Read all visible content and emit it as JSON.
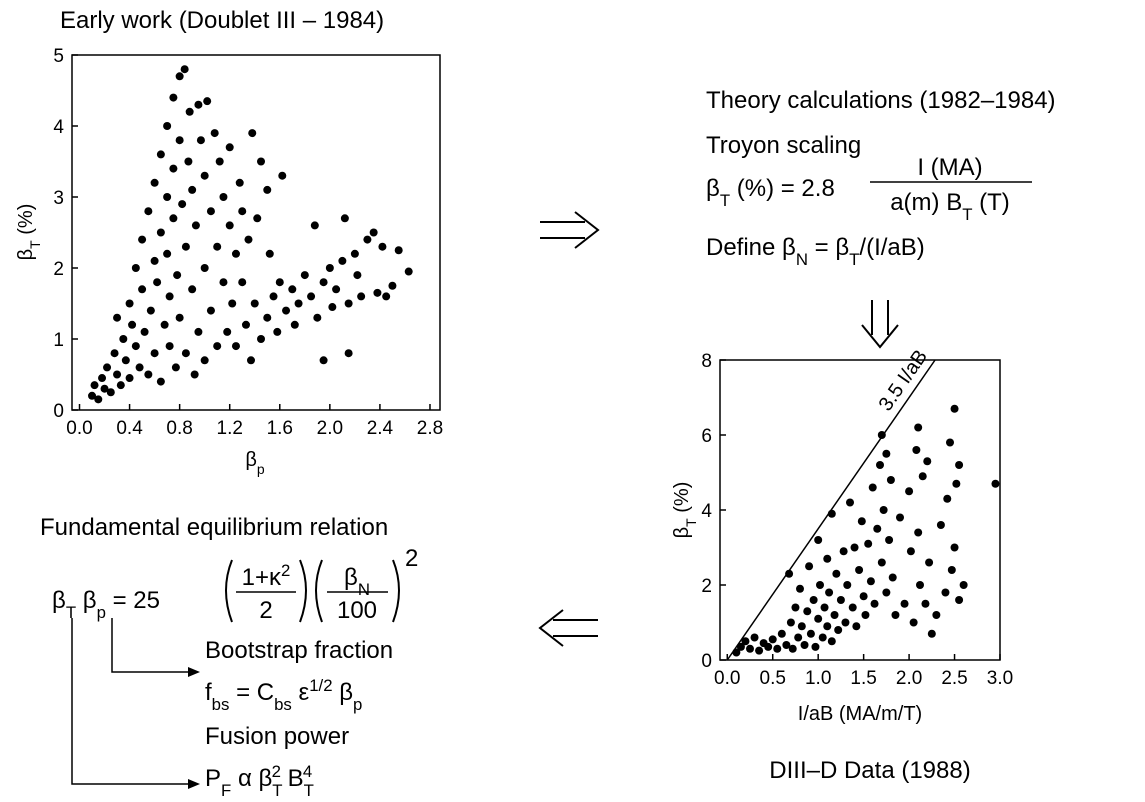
{
  "chart_data": [
    {
      "type": "scatter",
      "title": "Early work (Doublet III – 1984)",
      "xlabel": [
        "β",
        "p"
      ],
      "ylabel": [
        "β",
        "T",
        " (%)"
      ],
      "color": "#000000",
      "xlim": [
        -0.06,
        2.88
      ],
      "ylim": [
        0,
        5
      ],
      "xticks": [
        {
          "value": 0,
          "label": "0.0"
        },
        0.4,
        0.8,
        1.2,
        1.6,
        {
          "value": 2,
          "label": "2.0"
        },
        2.4,
        2.8
      ],
      "yticks": [
        0,
        1,
        2,
        3,
        4,
        5
      ],
      "x": [
        0.1,
        0.12,
        0.15,
        0.18,
        0.2,
        0.22,
        0.25,
        0.28,
        0.3,
        0.3,
        0.33,
        0.35,
        0.37,
        0.4,
        0.4,
        0.42,
        0.45,
        0.45,
        0.48,
        0.5,
        0.5,
        0.52,
        0.55,
        0.55,
        0.57,
        0.6,
        0.6,
        0.6,
        0.62,
        0.65,
        0.65,
        0.65,
        0.68,
        0.7,
        0.7,
        0.7,
        0.72,
        0.72,
        0.75,
        0.75,
        0.75,
        0.77,
        0.78,
        0.8,
        0.8,
        0.8,
        0.82,
        0.84,
        0.85,
        0.85,
        0.87,
        0.88,
        0.9,
        0.9,
        0.92,
        0.93,
        0.95,
        0.95,
        0.97,
        1.0,
        1.0,
        1.0,
        1.02,
        1.05,
        1.05,
        1.08,
        1.1,
        1.1,
        1.12,
        1.15,
        1.15,
        1.18,
        1.2,
        1.2,
        1.22,
        1.25,
        1.25,
        1.28,
        1.3,
        1.3,
        1.33,
        1.35,
        1.37,
        1.38,
        1.4,
        1.42,
        1.45,
        1.45,
        1.5,
        1.5,
        1.52,
        1.55,
        1.58,
        1.6,
        1.62,
        1.65,
        1.7,
        1.72,
        1.75,
        1.8,
        1.85,
        1.88,
        1.9,
        1.95,
        1.95,
        2.0,
        2.02,
        2.05,
        2.1,
        2.12,
        2.15,
        2.15,
        2.2,
        2.22,
        2.25,
        2.3,
        2.35,
        2.38,
        2.42,
        2.45,
        2.5,
        2.55,
        2.63
      ],
      "y": [
        0.2,
        0.35,
        0.15,
        0.45,
        0.3,
        0.6,
        0.25,
        0.8,
        1.3,
        0.5,
        0.35,
        1.0,
        0.7,
        1.5,
        0.45,
        1.2,
        0.9,
        2.0,
        0.6,
        1.7,
        2.4,
        1.1,
        0.5,
        2.8,
        1.4,
        3.2,
        2.1,
        0.8,
        1.8,
        3.6,
        2.5,
        0.4,
        1.2,
        4.0,
        3.0,
        2.2,
        1.6,
        0.9,
        4.4,
        3.4,
        2.7,
        0.6,
        1.9,
        4.7,
        3.8,
        1.3,
        2.9,
        4.8,
        2.3,
        0.8,
        3.5,
        4.2,
        1.7,
        3.1,
        0.5,
        2.6,
        4.3,
        1.1,
        3.8,
        2.0,
        3.3,
        0.7,
        4.35,
        2.8,
        1.4,
        3.9,
        2.3,
        0.9,
        3.5,
        1.8,
        3.0,
        1.1,
        2.6,
        3.7,
        1.5,
        2.2,
        0.9,
        3.2,
        1.8,
        2.8,
        1.2,
        2.4,
        0.7,
        3.9,
        1.5,
        2.7,
        1.0,
        3.5,
        1.3,
        3.1,
        2.2,
        1.6,
        1.1,
        1.8,
        3.3,
        1.4,
        1.7,
        1.2,
        1.5,
        1.9,
        1.6,
        2.6,
        1.3,
        1.8,
        0.7,
        2.0,
        1.45,
        1.7,
        2.1,
        2.7,
        1.5,
        0.8,
        2.2,
        1.9,
        1.6,
        2.4,
        2.5,
        1.65,
        2.3,
        1.6,
        1.75,
        2.25,
        1.95
      ]
    },
    {
      "type": "scatter",
      "title": "DIII–D Data (1988)",
      "xlabel": [
        "I/aB (MA/m/T)"
      ],
      "ylabel": [
        "β",
        "T",
        " (%)"
      ],
      "color": "#000000",
      "xlim": [
        -0.08,
        3.0
      ],
      "ylim": [
        0,
        8
      ],
      "xticks": [
        {
          "value": 0,
          "label": "0.0"
        },
        0.5,
        {
          "value": 1,
          "label": "1.0"
        },
        1.5,
        {
          "value": 2,
          "label": "2.0"
        },
        2.5,
        {
          "value": 3,
          "label": "3.0"
        }
      ],
      "yticks": [
        0,
        2,
        4,
        6,
        8
      ],
      "reference_line": {
        "label": "3.5 I/aB",
        "slope": 3.5
      },
      "x": [
        0.1,
        0.15,
        0.2,
        0.25,
        0.3,
        0.35,
        0.4,
        0.45,
        0.5,
        0.55,
        0.6,
        0.65,
        0.68,
        0.7,
        0.72,
        0.75,
        0.78,
        0.8,
        0.82,
        0.85,
        0.88,
        0.9,
        0.92,
        0.95,
        0.97,
        1.0,
        1.0,
        1.02,
        1.05,
        1.07,
        1.1,
        1.1,
        1.12,
        1.15,
        1.15,
        1.18,
        1.2,
        1.22,
        1.25,
        1.28,
        1.3,
        1.32,
        1.35,
        1.38,
        1.4,
        1.42,
        1.45,
        1.48,
        1.5,
        1.52,
        1.55,
        1.58,
        1.6,
        1.62,
        1.65,
        1.68,
        1.7,
        1.7,
        1.72,
        1.75,
        1.75,
        1.78,
        1.8,
        1.82,
        1.85,
        1.9,
        1.95,
        2.0,
        2.02,
        2.05,
        2.08,
        2.1,
        2.1,
        2.12,
        2.15,
        2.18,
        2.2,
        2.22,
        2.25,
        2.3,
        2.35,
        2.4,
        2.42,
        2.45,
        2.47,
        2.5,
        2.5,
        2.52,
        2.55,
        2.55,
        2.6,
        2.95
      ],
      "y": [
        0.2,
        0.35,
        0.5,
        0.3,
        0.6,
        0.25,
        0.45,
        0.35,
        0.55,
        0.3,
        0.7,
        0.4,
        2.3,
        1.0,
        0.3,
        1.4,
        0.6,
        1.9,
        0.9,
        0.4,
        1.3,
        2.5,
        0.7,
        1.6,
        0.35,
        3.2,
        1.1,
        2.0,
        0.6,
        1.4,
        2.7,
        0.9,
        1.8,
        0.5,
        3.9,
        1.2,
        2.3,
        0.8,
        1.6,
        2.9,
        1.0,
        2.0,
        4.2,
        1.4,
        3.0,
        0.9,
        2.4,
        3.7,
        1.7,
        1.2,
        3.1,
        2.1,
        4.6,
        1.5,
        3.5,
        5.2,
        2.6,
        6.0,
        4.0,
        1.8,
        5.5,
        3.2,
        4.8,
        2.2,
        1.2,
        3.8,
        1.5,
        4.5,
        2.9,
        1.0,
        5.6,
        3.4,
        6.2,
        2.0,
        4.9,
        1.5,
        5.3,
        2.6,
        0.7,
        1.2,
        3.6,
        1.8,
        4.3,
        5.8,
        2.4,
        6.7,
        3.0,
        4.7,
        1.6,
        5.2,
        2.0,
        4.7
      ]
    }
  ],
  "text": {
    "theory": "Theory calculations (1982–1984)",
    "troyon": "Troyon scaling",
    "troyon_eq": [
      "β",
      "T",
      " (%) = 2.8"
    ],
    "troyon_num": "I (MA)",
    "troyon_den": [
      "a(m) B",
      "T",
      " (T)"
    ],
    "define": [
      "Define β",
      "N",
      " = β",
      "T",
      "/(I/aB)"
    ],
    "fundamental": "Fundamental equilibrium relation",
    "fund_lhs": [
      "β",
      "T",
      " β",
      "p",
      " = 25"
    ],
    "fund_frac1": {
      "num": [
        "1+κ",
        "2"
      ],
      "den": "2"
    },
    "fund_frac2": {
      "num": [
        "β",
        "N"
      ],
      "den": "100"
    },
    "fund_power": "2",
    "bootstrap": "Bootstrap fraction",
    "bootstrap_eq": [
      "f",
      "bs",
      " = C",
      "bs",
      " ε",
      "1/2",
      " β",
      "p"
    ],
    "fusion": "Fusion power",
    "fusion_eq": [
      "P",
      "F",
      " α β",
      "T",
      "2",
      " B",
      "T",
      "4"
    ]
  }
}
